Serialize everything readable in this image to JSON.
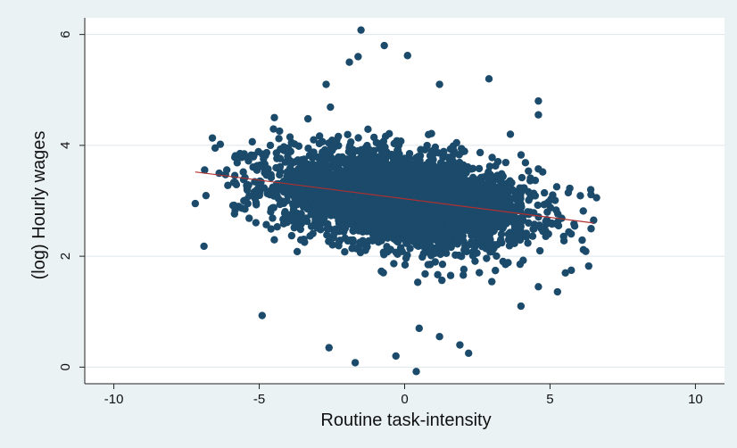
{
  "chart_data": {
    "type": "scatter",
    "title": "",
    "xlabel": "Routine task-intensity",
    "ylabel": "(log) Hourly wages",
    "xlim": [
      -11,
      11
    ],
    "ylim": [
      -0.3,
      6.3
    ],
    "xticks": [
      -10,
      -5,
      0,
      5,
      10
    ],
    "yticks": [
      0,
      2,
      4,
      6
    ],
    "grid": "horizontal",
    "legend": "none",
    "colors": {
      "points": "#1b4a6b",
      "fit_line": "#b03030",
      "plot_bg": "#ffffff",
      "page_bg": "#eaf2f3",
      "grid": "#dde6ea"
    },
    "series": [
      {
        "type": "scatter",
        "highlighted_points": [
          {
            "x": -1.5,
            "y": 6.08
          },
          {
            "x": -0.7,
            "y": 5.8
          },
          {
            "x": 0.1,
            "y": 5.62
          },
          {
            "x": -1.6,
            "y": 5.6
          },
          {
            "x": -1.9,
            "y": 5.5
          },
          {
            "x": -2.7,
            "y": 5.1
          },
          {
            "x": 1.2,
            "y": 5.1
          },
          {
            "x": 2.9,
            "y": 5.2
          },
          {
            "x": 4.6,
            "y": 4.8
          },
          {
            "x": 4.6,
            "y": 4.55
          },
          {
            "x": -4.9,
            "y": 0.93
          },
          {
            "x": -2.6,
            "y": 0.35
          },
          {
            "x": -1.7,
            "y": 0.08
          },
          {
            "x": 0.4,
            "y": -0.08
          },
          {
            "x": -0.3,
            "y": 0.2
          },
          {
            "x": 1.9,
            "y": 0.4
          },
          {
            "x": 2.2,
            "y": 0.25
          },
          {
            "x": -7.2,
            "y": 2.95
          },
          {
            "x": -6.9,
            "y": 2.18
          },
          {
            "x": 6.4,
            "y": 3.2
          },
          {
            "x": 6.5,
            "y": 2.65
          },
          {
            "x": 4.6,
            "y": 1.45
          },
          {
            "x": 4.0,
            "y": 1.1
          },
          {
            "x": 0.5,
            "y": 0.7
          },
          {
            "x": 1.2,
            "y": 0.55
          }
        ],
        "cloud": {
          "x_center": 0.0,
          "x_spread": 2.2,
          "y_center": 3.0,
          "y_slope": -0.066,
          "y_spread": 0.42,
          "x_range": [
            -7.2,
            6.6
          ]
        }
      }
    ],
    "fit_line": {
      "x": [
        -7.2,
        6.5
      ],
      "y": [
        3.52,
        2.6
      ]
    }
  }
}
